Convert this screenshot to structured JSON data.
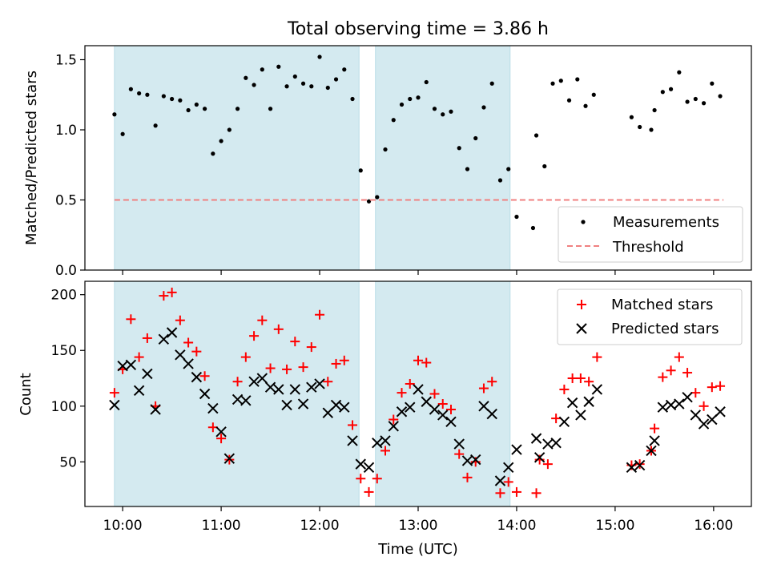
{
  "chart_data": [
    {
      "type": "scatter",
      "title": "Total observing time = 3.86 h",
      "ylabel": "Matched/Predicted stars",
      "xlabel": "",
      "xlim": [
        "09:37",
        "16:23"
      ],
      "ylim": [
        0,
        1.6
      ],
      "yticks": [
        "0.0",
        "0.5",
        "1.0",
        "1.5"
      ],
      "legend_position": "lower right",
      "highlighted_intervals": [
        [
          "09:55",
          "12:24"
        ],
        [
          "12:34",
          "13:56"
        ]
      ],
      "highlight_color": "#d4eaf0",
      "series": [
        {
          "name": "Measurements",
          "color": "#000000",
          "marker": "dot",
          "points": [
            [
              "09:55",
              1.11
            ],
            [
              "10:00",
              0.97
            ],
            [
              "10:05",
              1.29
            ],
            [
              "10:10",
              1.26
            ],
            [
              "10:15",
              1.25
            ],
            [
              "10:20",
              1.03
            ],
            [
              "10:25",
              1.24
            ],
            [
              "10:30",
              1.22
            ],
            [
              "10:35",
              1.21
            ],
            [
              "10:40",
              1.14
            ],
            [
              "10:45",
              1.18
            ],
            [
              "10:50",
              1.15
            ],
            [
              "10:55",
              0.83
            ],
            [
              "11:00",
              0.92
            ],
            [
              "11:05",
              1.0
            ],
            [
              "11:10",
              1.15
            ],
            [
              "11:15",
              1.37
            ],
            [
              "11:20",
              1.32
            ],
            [
              "11:25",
              1.43
            ],
            [
              "11:30",
              1.15
            ],
            [
              "11:35",
              1.45
            ],
            [
              "11:40",
              1.31
            ],
            [
              "11:45",
              1.38
            ],
            [
              "11:50",
              1.33
            ],
            [
              "11:55",
              1.31
            ],
            [
              "12:00",
              1.52
            ],
            [
              "12:05",
              1.3
            ],
            [
              "12:10",
              1.36
            ],
            [
              "12:15",
              1.43
            ],
            [
              "12:20",
              1.22
            ],
            [
              "12:25",
              0.71
            ],
            [
              "12:30",
              0.49
            ],
            [
              "12:35",
              0.52
            ],
            [
              "12:40",
              0.86
            ],
            [
              "12:45",
              1.07
            ],
            [
              "12:50",
              1.18
            ],
            [
              "12:55",
              1.22
            ],
            [
              "13:00",
              1.23
            ],
            [
              "13:05",
              1.34
            ],
            [
              "13:10",
              1.15
            ],
            [
              "13:15",
              1.11
            ],
            [
              "13:20",
              1.13
            ],
            [
              "13:25",
              0.87
            ],
            [
              "13:30",
              0.72
            ],
            [
              "13:35",
              0.94
            ],
            [
              "13:40",
              1.16
            ],
            [
              "13:45",
              1.33
            ],
            [
              "13:50",
              0.64
            ],
            [
              "13:55",
              0.72
            ],
            [
              "14:00",
              0.38
            ],
            [
              "14:10",
              0.3
            ],
            [
              "14:12",
              0.96
            ],
            [
              "14:17",
              0.74
            ],
            [
              "14:22",
              1.33
            ],
            [
              "14:27",
              1.35
            ],
            [
              "14:32",
              1.21
            ],
            [
              "14:37",
              1.36
            ],
            [
              "14:42",
              1.17
            ],
            [
              "14:47",
              1.25
            ],
            [
              "15:10",
              1.09
            ],
            [
              "15:15",
              1.02
            ],
            [
              "15:22",
              1.0
            ],
            [
              "15:24",
              1.14
            ],
            [
              "15:29",
              1.27
            ],
            [
              "15:34",
              1.29
            ],
            [
              "15:39",
              1.41
            ],
            [
              "15:44",
              1.2
            ],
            [
              "15:49",
              1.22
            ],
            [
              "15:54",
              1.19
            ],
            [
              "15:59",
              1.33
            ],
            [
              "16:04",
              1.24
            ]
          ]
        },
        {
          "name": "Threshold",
          "color": "#f08080",
          "style": "dashed",
          "points": [
            [
              "09:55",
              0.5
            ],
            [
              "16:06",
              0.5
            ]
          ]
        }
      ]
    },
    {
      "type": "scatter",
      "title": "",
      "xlabel": "Time (UTC)",
      "ylabel": "Count",
      "xlim": [
        "09:37",
        "16:23"
      ],
      "ylim": [
        10,
        212
      ],
      "xticks": [
        "10:00",
        "11:00",
        "12:00",
        "13:00",
        "14:00",
        "15:00",
        "16:00"
      ],
      "yticks": [
        "50",
        "100",
        "150",
        "200"
      ],
      "legend_position": "upper right",
      "highlighted_intervals": [
        [
          "09:55",
          "12:24"
        ],
        [
          "12:34",
          "13:56"
        ]
      ],
      "highlight_color": "#d4eaf0",
      "series": [
        {
          "name": "Matched stars",
          "color": "#ff0000",
          "marker": "plus",
          "points": [
            [
              "09:55",
              112
            ],
            [
              "10:00",
              133
            ],
            [
              "10:05",
              178
            ],
            [
              "10:10",
              144
            ],
            [
              "10:15",
              161
            ],
            [
              "10:20",
              100
            ],
            [
              "10:25",
              199
            ],
            [
              "10:30",
              202
            ],
            [
              "10:35",
              177
            ],
            [
              "10:40",
              157
            ],
            [
              "10:45",
              149
            ],
            [
              "10:50",
              127
            ],
            [
              "10:55",
              81
            ],
            [
              "11:00",
              71
            ],
            [
              "11:05",
              52
            ],
            [
              "11:10",
              122
            ],
            [
              "11:15",
              144
            ],
            [
              "11:20",
              163
            ],
            [
              "11:25",
              177
            ],
            [
              "11:30",
              134
            ],
            [
              "11:35",
              169
            ],
            [
              "11:40",
              133
            ],
            [
              "11:45",
              158
            ],
            [
              "11:50",
              135
            ],
            [
              "11:55",
              153
            ],
            [
              "12:00",
              182
            ],
            [
              "12:05",
              122
            ],
            [
              "12:10",
              138
            ],
            [
              "12:15",
              141
            ],
            [
              "12:20",
              83
            ],
            [
              "12:25",
              35
            ],
            [
              "12:30",
              23
            ],
            [
              "12:35",
              35
            ],
            [
              "12:40",
              60
            ],
            [
              "12:45",
              88
            ],
            [
              "12:50",
              112
            ],
            [
              "12:55",
              120
            ],
            [
              "13:00",
              141
            ],
            [
              "13:05",
              139
            ],
            [
              "13:10",
              111
            ],
            [
              "13:15",
              102
            ],
            [
              "13:20",
              97
            ],
            [
              "13:25",
              57
            ],
            [
              "13:30",
              36
            ],
            [
              "13:35",
              50
            ],
            [
              "13:40",
              116
            ],
            [
              "13:45",
              122
            ],
            [
              "13:50",
              22
            ],
            [
              "13:55",
              32
            ],
            [
              "14:00",
              23
            ],
            [
              "14:12",
              22
            ],
            [
              "14:14",
              52
            ],
            [
              "14:19",
              48
            ],
            [
              "14:24",
              89
            ],
            [
              "14:29",
              115
            ],
            [
              "14:34",
              125
            ],
            [
              "14:39",
              125
            ],
            [
              "14:44",
              122
            ],
            [
              "14:49",
              144
            ],
            [
              "15:10",
              47
            ],
            [
              "15:15",
              48
            ],
            [
              "15:22",
              60
            ],
            [
              "15:24",
              80
            ],
            [
              "15:29",
              126
            ],
            [
              "15:34",
              132
            ],
            [
              "15:39",
              144
            ],
            [
              "15:44",
              130
            ],
            [
              "15:49",
              112
            ],
            [
              "15:54",
              100
            ],
            [
              "15:59",
              117
            ],
            [
              "16:04",
              118
            ]
          ]
        },
        {
          "name": "Predicted stars",
          "color": "#000000",
          "marker": "x",
          "points": [
            [
              "09:55",
              101
            ],
            [
              "10:00",
              136
            ],
            [
              "10:05",
              137
            ],
            [
              "10:10",
              114
            ],
            [
              "10:15",
              129
            ],
            [
              "10:20",
              97
            ],
            [
              "10:25",
              160
            ],
            [
              "10:30",
              166
            ],
            [
              "10:35",
              146
            ],
            [
              "10:40",
              138
            ],
            [
              "10:45",
              126
            ],
            [
              "10:50",
              111
            ],
            [
              "10:55",
              98
            ],
            [
              "11:00",
              77
            ],
            [
              "11:05",
              53
            ],
            [
              "11:10",
              106
            ],
            [
              "11:15",
              105
            ],
            [
              "11:20",
              122
            ],
            [
              "11:25",
              125
            ],
            [
              "11:30",
              117
            ],
            [
              "11:35",
              115
            ],
            [
              "11:40",
              101
            ],
            [
              "11:45",
              115
            ],
            [
              "11:50",
              102
            ],
            [
              "11:55",
              117
            ],
            [
              "12:00",
              120
            ],
            [
              "12:05",
              94
            ],
            [
              "12:10",
              101
            ],
            [
              "12:15",
              99
            ],
            [
              "12:20",
              69
            ],
            [
              "12:25",
              48
            ],
            [
              "12:30",
              45
            ],
            [
              "12:35",
              67
            ],
            [
              "12:40",
              69
            ],
            [
              "12:45",
              82
            ],
            [
              "12:50",
              95
            ],
            [
              "12:55",
              99
            ],
            [
              "13:00",
              115
            ],
            [
              "13:05",
              104
            ],
            [
              "13:10",
              97
            ],
            [
              "13:15",
              92
            ],
            [
              "13:20",
              86
            ],
            [
              "13:25",
              66
            ],
            [
              "13:30",
              51
            ],
            [
              "13:35",
              52
            ],
            [
              "13:40",
              100
            ],
            [
              "13:45",
              93
            ],
            [
              "13:50",
              33
            ],
            [
              "13:55",
              45
            ],
            [
              "14:00",
              61
            ],
            [
              "14:12",
              71
            ],
            [
              "14:14",
              54
            ],
            [
              "14:19",
              66
            ],
            [
              "14:24",
              67
            ],
            [
              "14:29",
              86
            ],
            [
              "14:34",
              103
            ],
            [
              "14:39",
              92
            ],
            [
              "14:44",
              104
            ],
            [
              "14:49",
              115
            ],
            [
              "15:10",
              45
            ],
            [
              "15:15",
              47
            ],
            [
              "15:22",
              60
            ],
            [
              "15:24",
              69
            ],
            [
              "15:29",
              99
            ],
            [
              "15:34",
              101
            ],
            [
              "15:39",
              102
            ],
            [
              "15:44",
              108
            ],
            [
              "15:49",
              92
            ],
            [
              "15:54",
              84
            ],
            [
              "15:59",
              88
            ],
            [
              "16:04",
              95
            ]
          ]
        }
      ]
    }
  ]
}
